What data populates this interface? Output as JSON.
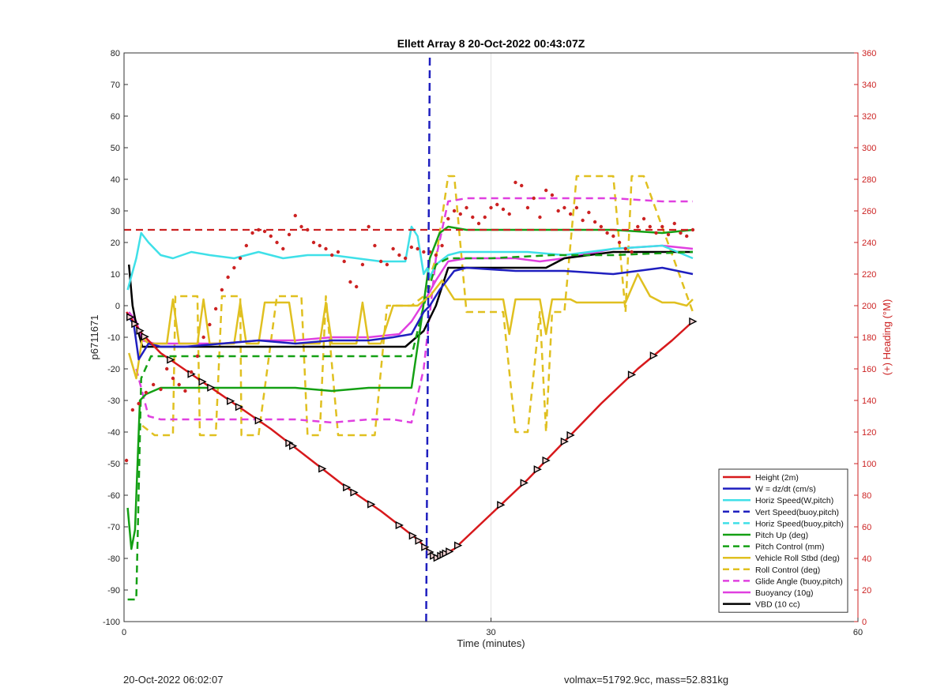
{
  "footer": {
    "timestamp": "20-Oct-2022 06:02:07",
    "stats": "volmax=51792.9cc, mass=52.831kg"
  },
  "chart_data": {
    "type": "line",
    "title": "Ellett Array 8 20-Oct-2022 00:43:07Z",
    "xlabel": "Time (minutes)",
    "ylabel_left": "p6711671",
    "ylabel_right": "(+) Heading (°M)",
    "xlim": [
      0,
      60
    ],
    "ylim_left": [
      -100,
      80
    ],
    "ylim_right": [
      0,
      360
    ],
    "xticks": [
      0,
      30,
      60
    ],
    "yticks_left": [
      80,
      70,
      60,
      50,
      40,
      30,
      20,
      10,
      0,
      -10,
      -20,
      -30,
      -40,
      -50,
      -60,
      -70,
      -80,
      -90,
      -100
    ],
    "yticks_right": [
      360,
      340,
      320,
      300,
      280,
      260,
      240,
      220,
      200,
      180,
      160,
      140,
      120,
      100,
      80,
      60,
      40,
      20,
      0
    ],
    "grid": true,
    "legend_position": "bottom-right",
    "colors": {
      "red": "#d7191c",
      "blue": "#1f1fbf",
      "cyan": "#3fe0e8",
      "green": "#14a014",
      "yellow": "#e0c020",
      "magenta": "#e040e0",
      "black": "#000000",
      "right_axis": "#cc2222"
    },
    "legend": [
      {
        "label": "Height (2m)",
        "color": "#d7191c",
        "dash": false
      },
      {
        "label": "W = dz/dt (cm/s)",
        "color": "#1f1fbf",
        "dash": false
      },
      {
        "label": "Horiz Speed(W,pitch)",
        "color": "#3fe0e8",
        "dash": false
      },
      {
        "label": "Vert Speed(buoy,pitch)",
        "color": "#1f1fbf",
        "dash": true
      },
      {
        "label": "Horiz Speed(buoy,pitch)",
        "color": "#3fe0e8",
        "dash": true
      },
      {
        "label": "Pitch Up (deg)",
        "color": "#14a014",
        "dash": false
      },
      {
        "label": "Pitch Control (mm)",
        "color": "#14a014",
        "dash": true
      },
      {
        "label": "Vehicle Roll Stbd (deg)",
        "color": "#e0c020",
        "dash": false
      },
      {
        "label": "Roll Control (deg)",
        "color": "#e0c020",
        "dash": true
      },
      {
        "label": "Glide Angle (buoy,pitch)",
        "color": "#e040e0",
        "dash": true
      },
      {
        "label": "Buoyancy (10g)",
        "color": "#e040e0",
        "dash": false
      },
      {
        "label": "VBD (10 cc)",
        "color": "#000000",
        "dash": false
      }
    ],
    "series": [
      {
        "name": "Height (2m)",
        "color": "#d7191c",
        "dash": false,
        "markers": true,
        "x": [
          0.2,
          1.5,
          3,
          6,
          9,
          12,
          15,
          18,
          21,
          24,
          25.5,
          27,
          30,
          33,
          36,
          39,
          42,
          44.8,
          46.5
        ],
        "y": [
          -2,
          -9,
          -15,
          -23,
          -31,
          -39,
          -48,
          -57,
          -65,
          -74,
          -80,
          -77,
          -66,
          -55,
          -43,
          -31,
          -20,
          -11,
          -5
        ]
      },
      {
        "name": "W = dz/dt (cm/s)",
        "color": "#1f1fbf",
        "dash": false,
        "x": [
          0.3,
          0.8,
          1.2,
          2,
          3,
          5,
          8,
          11,
          14,
          17,
          20,
          22,
          23.5,
          24.5,
          25,
          25.8,
          27,
          28,
          32,
          36,
          40,
          44,
          46.5
        ],
        "y": [
          -3,
          -6,
          -17,
          -12,
          -13,
          -13,
          -12,
          -11,
          -12,
          -11,
          -11,
          -10,
          -9,
          -2,
          0,
          5,
          11,
          12,
          11,
          11,
          10,
          12,
          10
        ]
      },
      {
        "name": "Horiz Speed(W,pitch)",
        "color": "#3fe0e8",
        "dash": false,
        "x": [
          0.3,
          1.0,
          1.4,
          2,
          3,
          4,
          5.5,
          7,
          9,
          11,
          13,
          15,
          17,
          19,
          21,
          23,
          23.5,
          24,
          24.5,
          24.8,
          25,
          25.5,
          26.5,
          27.5,
          30,
          33,
          36,
          40,
          44,
          46.5
        ],
        "y": [
          5,
          15,
          23,
          20,
          16,
          15,
          17,
          16,
          15,
          17,
          15,
          16,
          16,
          15,
          14,
          14,
          25,
          22,
          10,
          12,
          9,
          13,
          16,
          17,
          17,
          17,
          16,
          18,
          19,
          15
        ]
      },
      {
        "name": "Pitch Up (deg)",
        "color": "#14a014",
        "dash": false,
        "x": [
          0.3,
          0.6,
          0.9,
          1.3,
          1.8,
          3,
          5,
          8,
          11,
          14,
          17,
          20,
          23,
          23.5,
          24.3,
          25,
          25.8,
          26.5,
          28,
          32,
          36,
          40,
          44,
          46.5
        ],
        "y": [
          -64,
          -77,
          -71,
          -30,
          -28,
          -26,
          -26,
          -26,
          -26,
          -26,
          -27,
          -26,
          -26,
          -26,
          -5,
          15,
          23,
          25,
          24,
          24,
          24,
          24,
          23,
          24
        ]
      },
      {
        "name": "Pitch Control (mm)",
        "color": "#14a014",
        "dash": true,
        "x": [
          0.3,
          1.0,
          1.4,
          2.2,
          5,
          10,
          15,
          20,
          23.5,
          24.5,
          25.5,
          26.5,
          30,
          35,
          40,
          46.5
        ],
        "y": [
          -93,
          -93,
          -23,
          -16,
          -16,
          -16,
          -16,
          -16,
          -16,
          0,
          13,
          15,
          15,
          16,
          16,
          17
        ]
      },
      {
        "name": "Vehicle Roll Stbd (deg)",
        "color": "#e0c020",
        "dash": false,
        "x": [
          0.4,
          1.0,
          1.5,
          2,
          3,
          3.5,
          4,
          4.5,
          5,
          6,
          6.5,
          7,
          7.5,
          8,
          9,
          9.5,
          10,
          11,
          11.5,
          12,
          13,
          13.5,
          14,
          15,
          16,
          16.5,
          17,
          18,
          18.5,
          19,
          19.5,
          20,
          21,
          22,
          23,
          24,
          25,
          26,
          27,
          28,
          29,
          30,
          31,
          31.5,
          32,
          33,
          34,
          34.5,
          35,
          36,
          36.5,
          37,
          38,
          40,
          41,
          42,
          43,
          44,
          45,
          46,
          46.5
        ],
        "y": [
          -15,
          -23,
          -10,
          -12,
          -12,
          -12,
          2,
          -12,
          -12,
          -12,
          2,
          -12,
          -12,
          -12,
          -12,
          1,
          -12,
          -12,
          1,
          1,
          1,
          1,
          -12,
          -12,
          -12,
          1,
          -12,
          -12,
          -12,
          -12,
          1,
          -12,
          -12,
          0,
          0,
          0,
          3,
          8,
          2,
          2,
          2,
          2,
          2,
          -9,
          2,
          2,
          2,
          -9,
          2,
          2,
          2,
          1,
          1,
          1,
          1,
          10,
          3,
          1,
          1,
          0,
          2
        ]
      },
      {
        "name": "Roll Control (deg)",
        "color": "#e0c020",
        "dash": true,
        "x": [
          1.5,
          2.5,
          4,
          4.2,
          6,
          6.2,
          7.5,
          8,
          9.5,
          9.6,
          11,
          12.5,
          14.5,
          15,
          16,
          16.5,
          17.5,
          19,
          20,
          20.5,
          21.5,
          23.5,
          24.5,
          25.5,
          26.5,
          27,
          28,
          28.5,
          30,
          31,
          32,
          33,
          34,
          34.5,
          35,
          36,
          37,
          40,
          41,
          41.5,
          42.5,
          46.5
        ],
        "y": [
          -38,
          -41,
          -41,
          3,
          3,
          -41,
          -41,
          3,
          3,
          -41,
          -41,
          3,
          3,
          -41,
          -41,
          3,
          -41,
          -41,
          -41,
          -41,
          0,
          0,
          3,
          15,
          41,
          41,
          -2,
          -2,
          -2,
          -2,
          -40,
          -40,
          -2,
          -40,
          -2,
          -2,
          41,
          41,
          -2,
          41,
          41,
          -2
        ]
      },
      {
        "name": "Glide Angle (buoy,pitch)",
        "color": "#e040e0",
        "dash": true,
        "x": [
          1.0,
          2.0,
          3,
          5,
          8,
          11,
          14,
          17,
          20,
          22,
          23.5,
          24.5,
          25.5,
          26.5,
          28,
          32,
          36,
          40,
          44,
          46.5
        ],
        "y": [
          -20,
          -35,
          -36,
          -36,
          -36,
          -36,
          -36,
          -37,
          -36,
          -36,
          -37,
          -20,
          15,
          33,
          34,
          34,
          34,
          34,
          33,
          33
        ]
      },
      {
        "name": "Buoyancy (10g)",
        "color": "#e040e0",
        "dash": false,
        "x": [
          0.4,
          1.0,
          1.5,
          2.5,
          5,
          8,
          11,
          14,
          17,
          20,
          22.5,
          23.5,
          24.5,
          25.5,
          26.5,
          28,
          32,
          34,
          36,
          40,
          44,
          46.5
        ],
        "y": [
          -2,
          -5,
          -11,
          -12,
          -12,
          -12,
          -11,
          -11,
          -10,
          -10,
          -9,
          -5,
          1,
          8,
          14,
          15,
          15,
          14,
          15,
          18,
          19,
          18
        ]
      },
      {
        "name": "VBD (10 cc)",
        "color": "#000000",
        "dash": false,
        "x": [
          0.4,
          0.7,
          1.0,
          1.5,
          2.5,
          5,
          10,
          15,
          20,
          23,
          24.5,
          25.5,
          26.5,
          28,
          32,
          34.5,
          36,
          40,
          44,
          46.5
        ],
        "y": [
          13,
          0,
          -6,
          -13,
          -13,
          -13,
          -13,
          -13,
          -13,
          -13,
          -8,
          0,
          12,
          12,
          12,
          12,
          15,
          17,
          17,
          17
        ]
      }
    ],
    "heading": {
      "name": "Heading",
      "color": "#cc2222",
      "target": 248,
      "x": [
        0.2,
        0.7,
        1.2,
        1.8,
        2.4,
        3.0,
        3.5,
        4.0,
        4.5,
        5.0,
        5.5,
        6.0,
        6.5,
        7.0,
        7.5,
        8.0,
        8.5,
        9.0,
        9.5,
        10.0,
        10.5,
        11.0,
        11.5,
        12.0,
        12.5,
        13.0,
        13.5,
        14.0,
        14.5,
        15.0,
        15.5,
        16.0,
        16.5,
        17.0,
        17.5,
        18.0,
        18.5,
        19.0,
        19.5,
        20.0,
        20.5,
        21.0,
        21.5,
        22.0,
        22.5,
        23.0,
        23.5,
        24.0,
        24.5,
        25.0,
        25.5,
        26.0,
        26.5,
        27.0,
        27.5,
        28.0,
        28.5,
        29.0,
        29.5,
        30.0,
        30.5,
        31.0,
        31.5,
        32.0,
        32.5,
        33.0,
        33.5,
        34.0,
        34.5,
        35.0,
        35.5,
        36.0,
        36.5,
        37.0,
        37.5,
        38.0,
        38.5,
        39.0,
        39.5,
        40.0,
        40.5,
        41.0,
        41.5,
        42.0,
        42.5,
        43.0,
        43.5,
        44.0,
        44.5,
        45.0,
        45.5,
        46.0,
        46.5
      ],
      "y": [
        102,
        134,
        138,
        145,
        150,
        147,
        160,
        154,
        150,
        146,
        158,
        168,
        180,
        188,
        198,
        210,
        218,
        224,
        230,
        238,
        246,
        248,
        247,
        244,
        240,
        236,
        245,
        257,
        250,
        248,
        240,
        238,
        236,
        232,
        234,
        228,
        215,
        212,
        226,
        250,
        238,
        228,
        226,
        236,
        232,
        230,
        237,
        236,
        234,
        234,
        232,
        238,
        255,
        260,
        258,
        262,
        256,
        252,
        256,
        262,
        264,
        261,
        258,
        278,
        276,
        262,
        268,
        256,
        273,
        270,
        260,
        262,
        258,
        262,
        254,
        259,
        253,
        250,
        246,
        244,
        240,
        236,
        234,
        250,
        255,
        250,
        246,
        250,
        245,
        252,
        246,
        244,
        248
      ]
    },
    "annotations": [
      {
        "type": "vertical-dashed-line",
        "x": 24.7,
        "color": "#1f1fbf"
      }
    ]
  }
}
